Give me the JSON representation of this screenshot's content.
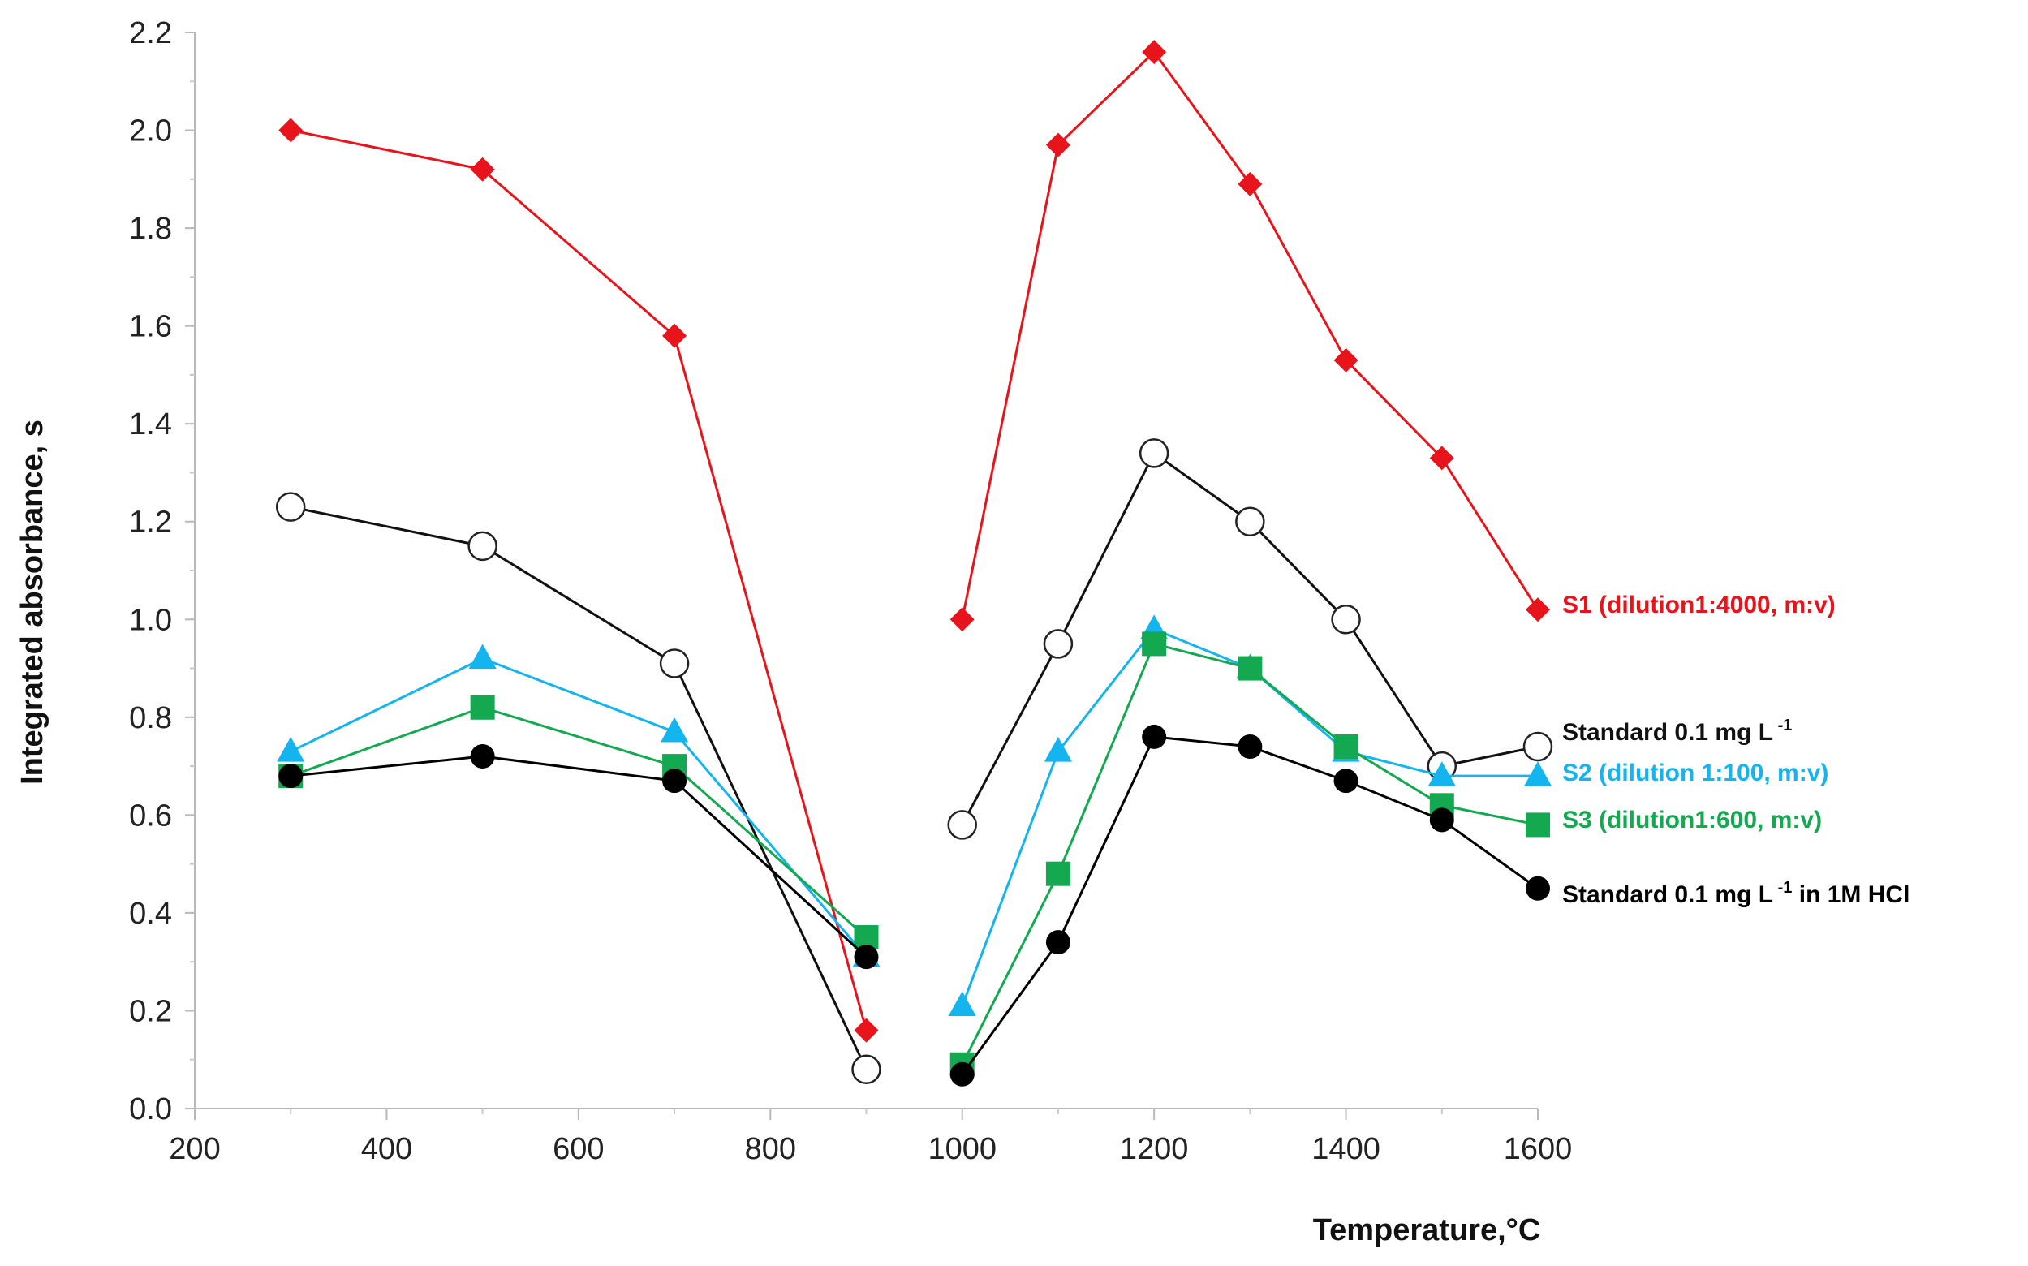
{
  "chart_data": {
    "type": "line",
    "title": "",
    "xlabel": "Temperature,°C",
    "ylabel": "Integrated absorbance, s",
    "xlim": [
      200,
      1600
    ],
    "ylim": [
      0.0,
      2.2
    ],
    "x_ticks": [
      "200",
      "400",
      "600",
      "800",
      "1000",
      "1200",
      "1400",
      "1600"
    ],
    "y_ticks": [
      "0.0",
      "0.2",
      "0.4",
      "0.6",
      "0.8",
      "1.0",
      "1.2",
      "1.4",
      "1.6",
      "1.8",
      "2.0",
      "2.2"
    ],
    "x_tick_values": [
      200,
      400,
      600,
      800,
      1000,
      1200,
      1400,
      1600
    ],
    "y_tick_values": [
      0.0,
      0.2,
      0.4,
      0.6,
      0.8,
      1.0,
      1.2,
      1.4,
      1.6,
      1.8,
      2.0,
      2.2
    ],
    "legend_placement": "right, next to line ends",
    "grid": false,
    "series": [
      {
        "name": "S1 (dilution1:4000, m:v)",
        "color": "#e8141b",
        "marker": "diamond-filled",
        "segments": [
          [
            [
              300,
              2.0
            ],
            [
              500,
              1.92
            ],
            [
              700,
              1.58
            ],
            [
              900,
              0.16
            ]
          ],
          [
            [
              1000,
              1.0
            ],
            [
              1100,
              1.97
            ],
            [
              1200,
              2.16
            ],
            [
              1300,
              1.89
            ],
            [
              1400,
              1.53
            ],
            [
              1500,
              1.33
            ],
            [
              1600,
              1.02
            ]
          ]
        ]
      },
      {
        "name": "Standard 0.1 mg L",
        "name_sup": "-1",
        "color": "#111111",
        "marker": "circle-open",
        "segments": [
          [
            [
              300,
              1.23
            ],
            [
              500,
              1.15
            ],
            [
              700,
              0.91
            ],
            [
              900,
              0.08
            ]
          ],
          [
            [
              1000,
              0.58
            ],
            [
              1100,
              0.95
            ],
            [
              1200,
              1.34
            ],
            [
              1300,
              1.2
            ],
            [
              1400,
              1.0
            ],
            [
              1500,
              0.7
            ],
            [
              1600,
              0.74
            ]
          ]
        ]
      },
      {
        "name": "S2 (dilution  1:100, m:v)",
        "color": "#14b4ee",
        "marker": "triangle-filled",
        "segments": [
          [
            [
              300,
              0.73
            ],
            [
              500,
              0.92
            ],
            [
              700,
              0.77
            ],
            [
              900,
              0.31
            ]
          ],
          [
            [
              1000,
              0.21
            ],
            [
              1100,
              0.73
            ],
            [
              1200,
              0.98
            ],
            [
              1300,
              0.9
            ],
            [
              1400,
              0.73
            ],
            [
              1500,
              0.68
            ],
            [
              1600,
              0.68
            ]
          ]
        ]
      },
      {
        "name": "S3 (dilution1:600, m:v)",
        "color": "#14a850",
        "marker": "square-filled",
        "segments": [
          [
            [
              300,
              0.68
            ],
            [
              500,
              0.82
            ],
            [
              700,
              0.7
            ],
            [
              900,
              0.35
            ]
          ],
          [
            [
              1000,
              0.09
            ],
            [
              1100,
              0.48
            ],
            [
              1200,
              0.95
            ],
            [
              1300,
              0.9
            ],
            [
              1400,
              0.74
            ],
            [
              1500,
              0.62
            ],
            [
              1600,
              0.58
            ]
          ]
        ]
      },
      {
        "name": "Standard 0.1 mg L",
        "name_sup": "-1",
        "name_suffix": " in 1M HCl",
        "color": "#000000",
        "marker": "circle-filled",
        "segments": [
          [
            [
              300,
              0.68
            ],
            [
              500,
              0.72
            ],
            [
              700,
              0.67
            ],
            [
              900,
              0.31
            ]
          ],
          [
            [
              1000,
              0.07
            ],
            [
              1100,
              0.34
            ],
            [
              1200,
              0.76
            ],
            [
              1300,
              0.74
            ],
            [
              1400,
              0.67
            ],
            [
              1500,
              0.59
            ],
            [
              1600,
              0.45
            ]
          ]
        ]
      }
    ]
  }
}
